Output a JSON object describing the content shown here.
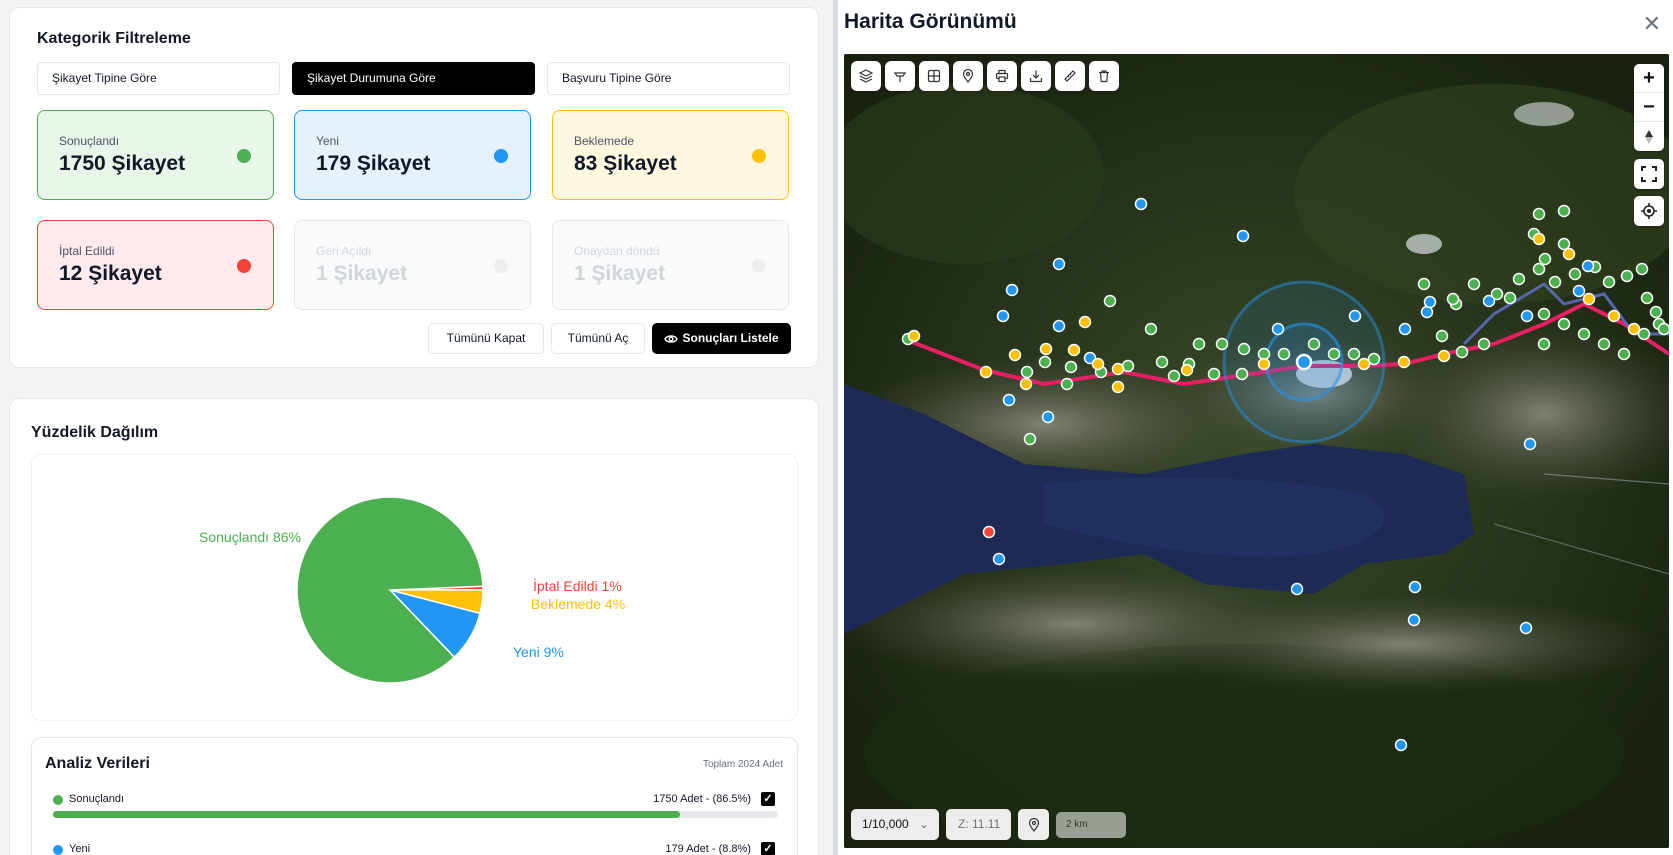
{
  "filter": {
    "title": "Kategorik Filtreleme",
    "tabs": [
      {
        "label": "Şikayet Tipine Göre"
      },
      {
        "label": "Şikayet Durumuna Göre"
      },
      {
        "label": "Başvuru Tipine Göre"
      }
    ],
    "stats": [
      {
        "label": "Sonuçlandı",
        "value": "1750 Şikayet",
        "color": "#4caf50"
      },
      {
        "label": "Yeni",
        "value": "179 Şikayet",
        "color": "#2196f3"
      },
      {
        "label": "Beklemede",
        "value": "83 Şikayet",
        "color": "#ffc107"
      },
      {
        "label": "İptal Edildi",
        "value": "12 Şikayet",
        "color": "#f44336"
      },
      {
        "label": "Geri Açıldı",
        "value": "1 Şikayet",
        "color": "#eeeeee"
      },
      {
        "label": "Onaydan döndü",
        "value": "1 Şikayet",
        "color": "#eeeeee"
      }
    ],
    "buttons": {
      "close_all": "Tümünü Kapat",
      "open_all": "Tümünü Aç",
      "list_results": "Sonuçları Listele"
    }
  },
  "distribution": {
    "title": "Yüzdelik Dağılım"
  },
  "chart_data": {
    "type": "pie",
    "slices": [
      {
        "label": "Sonuçlandı 86%",
        "value": 86.5,
        "color": "#4caf50"
      },
      {
        "label": "Yeni 9%",
        "value": 8.8,
        "color": "#2196f3"
      },
      {
        "label": "Beklemede 4%",
        "value": 4.1,
        "color": "#ffc107"
      },
      {
        "label": "İptal Edildi 1%",
        "value": 0.6,
        "color": "#f44336"
      }
    ]
  },
  "analysis": {
    "title": "Analiz Verileri",
    "total": "Toplam 2024 Adet",
    "rows": [
      {
        "label": "Sonuçlandı",
        "value": "1750 Adet - (86.5%)",
        "percent": 86.5,
        "color": "#4caf50"
      },
      {
        "label": "Yeni",
        "value": "179 Adet - (8.8%)",
        "percent": 8.8,
        "color": "#2196f3"
      }
    ],
    "check_glyph": "✓"
  },
  "map": {
    "title": "Harita Görünümü",
    "close_glyph": "✕",
    "tools": [
      "layers-icon",
      "pin-flag-icon",
      "grid-icon",
      "location-pin-icon",
      "print-icon",
      "download-icon",
      "ruler-icon",
      "trash-icon"
    ],
    "zoom_in": "+",
    "zoom_out": "−",
    "scale_select": "1/10,000",
    "zoom_level": "Z: 11.11",
    "scale_bar": "2 km"
  }
}
